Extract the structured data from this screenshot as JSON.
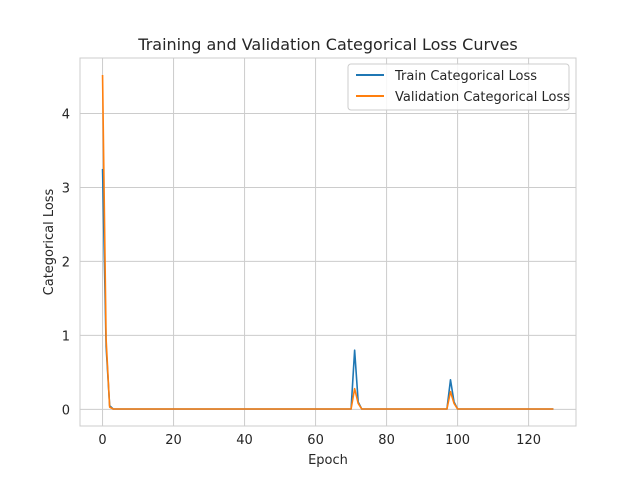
{
  "chart_data": {
    "type": "line",
    "title": "Training and Validation Categorical Loss Curves",
    "xlabel": "Epoch",
    "ylabel": "Categorical Loss",
    "xlim": [
      -6.35,
      133.35
    ],
    "ylim": [
      -0.225,
      4.75
    ],
    "xticks": [
      0,
      20,
      40,
      60,
      80,
      100,
      120
    ],
    "yticks": [
      0,
      1,
      2,
      3,
      4
    ],
    "grid": true,
    "legend_position": "upper-right",
    "series": [
      {
        "name": "Train Categorical Loss",
        "color": "#1f77b4",
        "points": [
          [
            0,
            3.25
          ],
          [
            1,
            0.85
          ],
          [
            2,
            0.05
          ],
          [
            3,
            0.005
          ],
          [
            70,
            0.005
          ],
          [
            71,
            0.8
          ],
          [
            72,
            0.1
          ],
          [
            73,
            0.005
          ],
          [
            97,
            0.005
          ],
          [
            98,
            0.4
          ],
          [
            99,
            0.1
          ],
          [
            100,
            0.005
          ],
          [
            127,
            0.005
          ]
        ]
      },
      {
        "name": "Validation Categorical Loss",
        "color": "#ff7f0e",
        "points": [
          [
            0,
            4.52
          ],
          [
            1,
            0.95
          ],
          [
            2,
            0.03
          ],
          [
            3,
            0.005
          ],
          [
            70,
            0.005
          ],
          [
            71,
            0.28
          ],
          [
            72,
            0.08
          ],
          [
            73,
            0.005
          ],
          [
            97,
            0.005
          ],
          [
            98,
            0.24
          ],
          [
            99,
            0.08
          ],
          [
            100,
            0.005
          ],
          [
            127,
            0.005
          ]
        ]
      }
    ]
  }
}
